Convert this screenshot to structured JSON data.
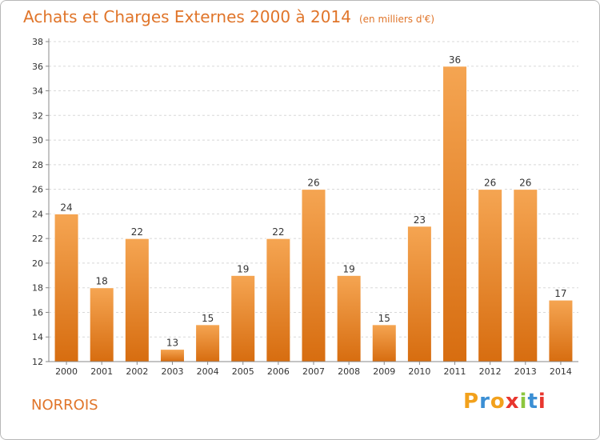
{
  "title": "Achats et Charges Externes 2000 à 2014",
  "unit": "(en milliers d'€)",
  "commune": "NORROIS",
  "logo": "Proxiti",
  "colors": {
    "title": "#e0752a",
    "bar_top": "#f5a552",
    "bar_bottom": "#d76d10",
    "grid": "#d8d8d8",
    "axis": "#888888"
  },
  "chart_data": {
    "type": "bar",
    "categories": [
      "2000",
      "2001",
      "2002",
      "2003",
      "2004",
      "2005",
      "2006",
      "2007",
      "2008",
      "2009",
      "2010",
      "2011",
      "2012",
      "2013",
      "2014"
    ],
    "values": [
      24,
      18,
      22,
      13,
      15,
      19,
      22,
      26,
      19,
      15,
      23,
      36,
      26,
      26,
      17
    ],
    "yticks": [
      12,
      14,
      16,
      18,
      20,
      22,
      24,
      26,
      28,
      30,
      32,
      34,
      36,
      38
    ],
    "ylim": [
      12,
      38
    ],
    "grid": true,
    "legend": "none"
  }
}
